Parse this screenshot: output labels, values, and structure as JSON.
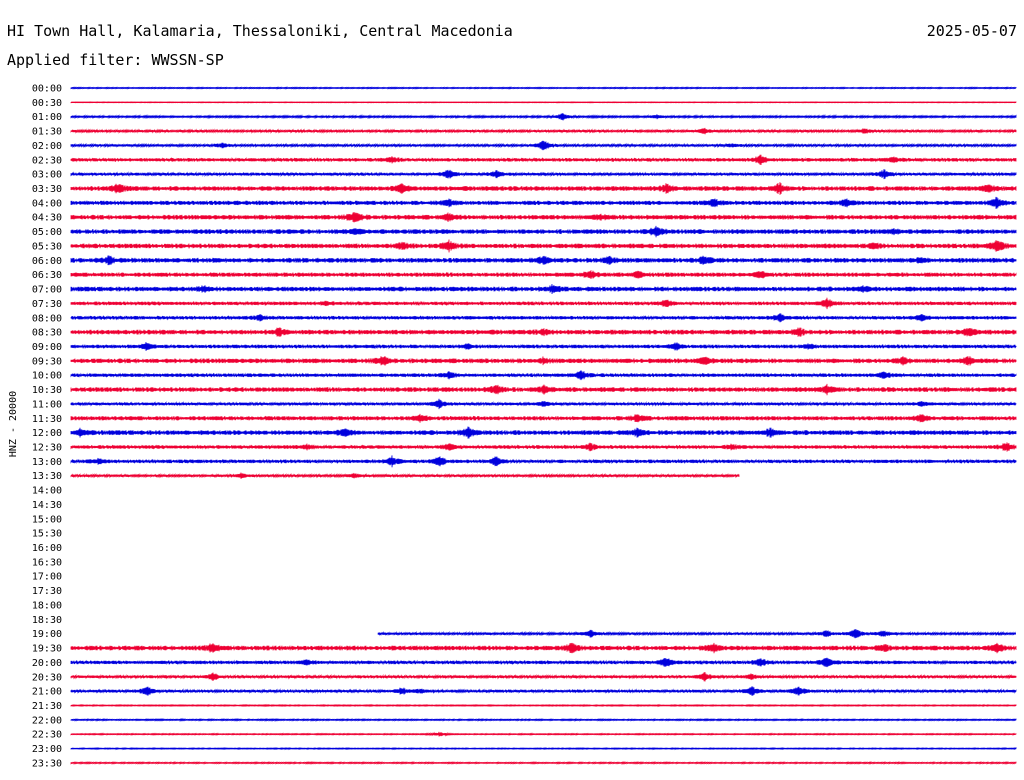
{
  "header": {
    "station": "HI Town Hall, Kalamaria, Thessaloniki, Central Macedonia",
    "date": "2025-05-07",
    "filter": "Applied filter: WWSSN-SP"
  },
  "chart_data": {
    "type": "line",
    "ylabel": "HNZ - 20000",
    "colors": [
      "#0000dd",
      "#ee0033"
    ],
    "rows": [
      {
        "label": "00:00",
        "start": 0,
        "end": 1,
        "amp": 0.5,
        "events": []
      },
      {
        "label": "00:30",
        "start": 0,
        "end": 1,
        "amp": 0.3,
        "events": []
      },
      {
        "label": "01:00",
        "start": 0,
        "end": 1,
        "amp": 0.8,
        "events": [
          [
            0.52,
            3
          ],
          [
            0.62,
            1.5
          ]
        ]
      },
      {
        "label": "01:30",
        "start": 0,
        "end": 1,
        "amp": 1.0,
        "events": [
          [
            0.67,
            2.5
          ],
          [
            0.84,
            2
          ]
        ]
      },
      {
        "label": "02:00",
        "start": 0,
        "end": 1,
        "amp": 1.0,
        "events": [
          [
            0.16,
            2
          ],
          [
            0.5,
            5
          ],
          [
            0.7,
            1.5
          ]
        ]
      },
      {
        "label": "02:30",
        "start": 0,
        "end": 1,
        "amp": 1.5,
        "events": [
          [
            0.34,
            2
          ],
          [
            0.73,
            4
          ],
          [
            0.87,
            2
          ]
        ]
      },
      {
        "label": "03:00",
        "start": 0,
        "end": 1,
        "amp": 1.2,
        "events": [
          [
            0.4,
            4
          ],
          [
            0.45,
            3
          ],
          [
            0.86,
            4
          ]
        ]
      },
      {
        "label": "03:30",
        "start": 0,
        "end": 1,
        "amp": 2.0,
        "events": [
          [
            0.05,
            4
          ],
          [
            0.35,
            4
          ],
          [
            0.63,
            3
          ],
          [
            0.75,
            4
          ],
          [
            0.97,
            3
          ]
        ]
      },
      {
        "label": "04:00",
        "start": 0,
        "end": 1,
        "amp": 1.8,
        "events": [
          [
            0.4,
            3
          ],
          [
            0.68,
            3
          ],
          [
            0.82,
            3
          ],
          [
            0.98,
            5
          ]
        ]
      },
      {
        "label": "04:30",
        "start": 0,
        "end": 1,
        "amp": 2.0,
        "events": [
          [
            0.3,
            5
          ],
          [
            0.4,
            3
          ],
          [
            0.56,
            2
          ]
        ]
      },
      {
        "label": "05:00",
        "start": 0,
        "end": 1,
        "amp": 2.0,
        "events": [
          [
            0.3,
            2
          ],
          [
            0.62,
            4
          ],
          [
            0.87,
            2
          ]
        ]
      },
      {
        "label": "05:30",
        "start": 0,
        "end": 1,
        "amp": 2.0,
        "events": [
          [
            0.35,
            3
          ],
          [
            0.4,
            4
          ],
          [
            0.85,
            2
          ],
          [
            0.98,
            5
          ]
        ]
      },
      {
        "label": "06:00",
        "start": 0,
        "end": 1,
        "amp": 2.0,
        "events": [
          [
            0.04,
            3
          ],
          [
            0.5,
            3
          ],
          [
            0.57,
            3
          ],
          [
            0.67,
            3
          ],
          [
            0.9,
            2
          ]
        ]
      },
      {
        "label": "06:30",
        "start": 0,
        "end": 1,
        "amp": 1.8,
        "events": [
          [
            0.55,
            3
          ],
          [
            0.6,
            2
          ],
          [
            0.73,
            3
          ]
        ]
      },
      {
        "label": "07:00",
        "start": 0,
        "end": 1,
        "amp": 2.0,
        "events": [
          [
            0.14,
            2
          ],
          [
            0.51,
            3
          ],
          [
            0.84,
            2
          ]
        ]
      },
      {
        "label": "07:30",
        "start": 0,
        "end": 1,
        "amp": 1.5,
        "events": [
          [
            0.27,
            2
          ],
          [
            0.63,
            3
          ],
          [
            0.8,
            4
          ]
        ]
      },
      {
        "label": "08:00",
        "start": 0,
        "end": 1,
        "amp": 1.5,
        "events": [
          [
            0.2,
            2
          ],
          [
            0.75,
            3
          ],
          [
            0.9,
            3
          ]
        ]
      },
      {
        "label": "08:30",
        "start": 0,
        "end": 1,
        "amp": 2.0,
        "events": [
          [
            0.22,
            3
          ],
          [
            0.5,
            2
          ],
          [
            0.77,
            3
          ],
          [
            0.95,
            3
          ]
        ]
      },
      {
        "label": "09:00",
        "start": 0,
        "end": 1,
        "amp": 1.5,
        "events": [
          [
            0.08,
            3
          ],
          [
            0.42,
            2
          ],
          [
            0.64,
            3
          ],
          [
            0.78,
            2
          ]
        ]
      },
      {
        "label": "09:30",
        "start": 0,
        "end": 1,
        "amp": 2.0,
        "events": [
          [
            0.33,
            4
          ],
          [
            0.5,
            2
          ],
          [
            0.67,
            3
          ],
          [
            0.88,
            3
          ],
          [
            0.95,
            3
          ]
        ]
      },
      {
        "label": "10:00",
        "start": 0,
        "end": 1,
        "amp": 1.5,
        "events": [
          [
            0.4,
            3
          ],
          [
            0.54,
            4
          ],
          [
            0.86,
            3
          ]
        ]
      },
      {
        "label": "10:30",
        "start": 0,
        "end": 1,
        "amp": 2.0,
        "events": [
          [
            0.45,
            4
          ],
          [
            0.5,
            3
          ],
          [
            0.8,
            3
          ]
        ]
      },
      {
        "label": "11:00",
        "start": 0,
        "end": 1,
        "amp": 1.2,
        "events": [
          [
            0.39,
            4
          ],
          [
            0.5,
            2
          ],
          [
            0.9,
            2
          ]
        ]
      },
      {
        "label": "11:30",
        "start": 0,
        "end": 1,
        "amp": 1.8,
        "events": [
          [
            0.37,
            3
          ],
          [
            0.6,
            3
          ],
          [
            0.9,
            3
          ]
        ]
      },
      {
        "label": "12:00",
        "start": 0,
        "end": 1,
        "amp": 2.0,
        "events": [
          [
            0.01,
            3
          ],
          [
            0.29,
            3
          ],
          [
            0.42,
            4
          ],
          [
            0.6,
            3
          ],
          [
            0.74,
            4
          ]
        ]
      },
      {
        "label": "12:30",
        "start": 0,
        "end": 1,
        "amp": 1.5,
        "events": [
          [
            0.25,
            2
          ],
          [
            0.4,
            3
          ],
          [
            0.55,
            3
          ],
          [
            0.7,
            2
          ],
          [
            0.99,
            4
          ]
        ]
      },
      {
        "label": "13:00",
        "start": 0,
        "end": 1,
        "amp": 1.5,
        "events": [
          [
            0.03,
            2
          ],
          [
            0.34,
            4
          ],
          [
            0.39,
            4
          ],
          [
            0.45,
            4
          ]
        ]
      },
      {
        "label": "13:30",
        "start": 0,
        "end": 0.707,
        "amp": 1.0,
        "events": [
          [
            0.18,
            2
          ],
          [
            0.3,
            2
          ]
        ]
      },
      {
        "label": "14:00",
        "start": 0,
        "end": 0,
        "amp": 0,
        "events": []
      },
      {
        "label": "14:30",
        "start": 0,
        "end": 0,
        "amp": 0,
        "events": []
      },
      {
        "label": "15:00",
        "start": 0,
        "end": 0,
        "amp": 0,
        "events": []
      },
      {
        "label": "15:30",
        "start": 0,
        "end": 0,
        "amp": 0,
        "events": []
      },
      {
        "label": "16:00",
        "start": 0,
        "end": 0,
        "amp": 0,
        "events": []
      },
      {
        "label": "16:30",
        "start": 0,
        "end": 0,
        "amp": 0,
        "events": []
      },
      {
        "label": "17:00",
        "start": 0,
        "end": 0,
        "amp": 0,
        "events": []
      },
      {
        "label": "17:30",
        "start": 0,
        "end": 0,
        "amp": 0,
        "events": []
      },
      {
        "label": "18:00",
        "start": 0,
        "end": 0,
        "amp": 0,
        "events": []
      },
      {
        "label": "18:30",
        "start": 0,
        "end": 0,
        "amp": 0,
        "events": []
      },
      {
        "label": "19:00",
        "start": 0.325,
        "end": 1,
        "amp": 1.0,
        "events": [
          [
            0.55,
            3
          ],
          [
            0.8,
            3
          ],
          [
            0.83,
            5
          ],
          [
            0.86,
            3
          ]
        ]
      },
      {
        "label": "19:30",
        "start": 0,
        "end": 1,
        "amp": 2.0,
        "events": [
          [
            0.15,
            4
          ],
          [
            0.53,
            4
          ],
          [
            0.68,
            3
          ],
          [
            0.86,
            3
          ],
          [
            0.98,
            4
          ]
        ]
      },
      {
        "label": "20:00",
        "start": 0,
        "end": 1,
        "amp": 1.5,
        "events": [
          [
            0.25,
            2
          ],
          [
            0.63,
            4
          ],
          [
            0.73,
            3
          ],
          [
            0.8,
            4
          ]
        ]
      },
      {
        "label": "20:30",
        "start": 0,
        "end": 1,
        "amp": 1.2,
        "events": [
          [
            0.15,
            3
          ],
          [
            0.67,
            4
          ],
          [
            0.72,
            2
          ]
        ]
      },
      {
        "label": "21:00",
        "start": 0,
        "end": 1,
        "amp": 1.2,
        "events": [
          [
            0.08,
            4
          ],
          [
            0.35,
            3
          ],
          [
            0.37,
            2
          ],
          [
            0.72,
            4
          ],
          [
            0.77,
            4
          ]
        ]
      },
      {
        "label": "21:30",
        "start": 0,
        "end": 1,
        "amp": 0.5,
        "events": []
      },
      {
        "label": "22:00",
        "start": 0,
        "end": 1,
        "amp": 0.6,
        "events": []
      },
      {
        "label": "22:30",
        "start": 0,
        "end": 1,
        "amp": 0.5,
        "events": [
          [
            0.39,
            2
          ]
        ]
      },
      {
        "label": "23:00",
        "start": 0,
        "end": 1,
        "amp": 0.5,
        "events": []
      },
      {
        "label": "23:30",
        "start": 0,
        "end": 1,
        "amp": 0.6,
        "events": []
      }
    ]
  }
}
